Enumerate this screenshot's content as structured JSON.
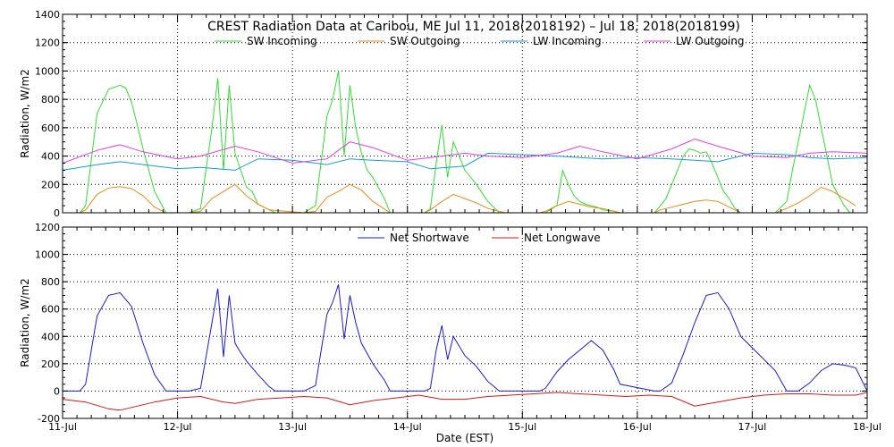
{
  "chart_data": [
    {
      "type": "line",
      "title": "CREST Radiation Data at Caribou, ME   Jul 11, 2018(2018192) – Jul 18, 2018(2018199)",
      "ylabel": "Radiation, W/m2",
      "xlabel": "",
      "xlim": [
        0,
        7
      ],
      "ylim": [
        0,
        1400
      ],
      "yticks": [
        "0",
        "200",
        "400",
        "600",
        "800",
        "1000",
        "1200",
        "1400"
      ],
      "grid": true,
      "legend_position": "top",
      "colors": {
        "sw_in": "#33dd33",
        "sw_out": "#e88a1a",
        "lw_in": "#1a9ad6",
        "lw_out": "#e040e0"
      },
      "series": [
        {
          "name": "SW Incoming",
          "color": "#33dd33",
          "x": [
            0.15,
            0.2,
            0.3,
            0.4,
            0.5,
            0.55,
            0.6,
            0.65,
            0.7,
            0.8,
            0.9,
            0.95,
            1.1,
            1.2,
            1.3,
            1.35,
            1.4,
            1.45,
            1.5,
            1.55,
            1.6,
            1.65,
            1.7,
            1.8,
            1.85,
            2.1,
            2.2,
            2.3,
            2.35,
            2.4,
            2.45,
            2.5,
            2.55,
            2.6,
            2.65,
            2.7,
            2.8,
            2.85,
            3.15,
            3.2,
            3.25,
            3.3,
            3.35,
            3.4,
            3.5,
            3.6,
            3.7,
            3.8,
            4.2,
            4.3,
            4.35,
            4.4,
            4.45,
            4.5,
            4.55,
            4.6,
            4.65,
            4.7,
            4.8,
            4.85,
            5.15,
            5.2,
            5.25,
            5.3,
            5.35,
            5.4,
            5.45,
            5.5,
            5.55,
            5.6,
            5.65,
            5.7,
            5.75,
            5.8,
            5.85,
            5.9,
            6.2,
            6.3,
            6.35,
            6.4,
            6.45,
            6.5,
            6.55,
            6.6,
            6.65,
            6.7,
            6.8,
            6.85,
            6.9
          ],
          "values": [
            0,
            50,
            700,
            870,
            900,
            880,
            780,
            620,
            450,
            150,
            0,
            0,
            0,
            30,
            600,
            950,
            300,
            900,
            420,
            300,
            180,
            150,
            60,
            20,
            0,
            0,
            50,
            680,
            800,
            1000,
            400,
            900,
            600,
            420,
            300,
            250,
            100,
            0,
            0,
            30,
            350,
            620,
            250,
            500,
            300,
            200,
            80,
            0,
            0,
            50,
            300,
            200,
            120,
            80,
            60,
            50,
            40,
            20,
            10,
            0,
            0,
            50,
            100,
            200,
            300,
            400,
            450,
            440,
            420,
            430,
            350,
            250,
            150,
            100,
            30,
            0,
            0,
            80,
            300,
            500,
            700,
            900,
            800,
            600,
            400,
            200,
            50,
            0,
            0
          ]
        },
        {
          "name": "SW Outgoing",
          "color": "#e88a1a",
          "x": [
            0.15,
            0.2,
            0.3,
            0.4,
            0.5,
            0.6,
            0.7,
            0.8,
            0.9,
            1.1,
            1.2,
            1.3,
            1.4,
            1.5,
            1.6,
            1.7,
            1.8,
            2.1,
            2.2,
            2.3,
            2.4,
            2.5,
            2.6,
            2.7,
            2.85,
            3.15,
            3.2,
            3.3,
            3.4,
            3.5,
            3.6,
            3.7,
            3.85,
            4.15,
            4.2,
            4.3,
            4.4,
            4.5,
            4.6,
            4.7,
            4.8,
            4.85,
            5.15,
            5.2,
            5.3,
            5.4,
            5.5,
            5.6,
            5.7,
            5.8,
            5.85,
            5.9,
            6.2,
            6.3,
            6.4,
            6.5,
            6.6,
            6.7,
            6.8,
            6.9
          ],
          "values": [
            0,
            20,
            130,
            175,
            185,
            170,
            120,
            40,
            0,
            0,
            10,
            100,
            150,
            200,
            120,
            60,
            20,
            0,
            10,
            110,
            150,
            200,
            160,
            80,
            0,
            0,
            20,
            80,
            130,
            100,
            70,
            30,
            0,
            0,
            10,
            50,
            80,
            60,
            40,
            30,
            10,
            0,
            0,
            20,
            40,
            60,
            80,
            90,
            80,
            40,
            20,
            0,
            0,
            30,
            70,
            120,
            180,
            150,
            100,
            50
          ]
        },
        {
          "name": "LW Incoming",
          "color": "#1a9ad6",
          "x": [
            0,
            0.3,
            0.5,
            0.7,
            1.0,
            1.2,
            1.5,
            1.7,
            2.0,
            2.3,
            2.5,
            2.7,
            3.0,
            3.2,
            3.5,
            3.7,
            4.0,
            4.3,
            4.5,
            4.7,
            5.0,
            5.3,
            5.5,
            5.7,
            6.0,
            6.3,
            6.5,
            6.7,
            7.0
          ],
          "values": [
            300,
            340,
            360,
            340,
            310,
            320,
            300,
            380,
            370,
            340,
            380,
            370,
            360,
            310,
            330,
            420,
            410,
            400,
            390,
            380,
            390,
            380,
            370,
            360,
            420,
            410,
            390,
            380,
            390
          ]
        },
        {
          "name": "LW Outgoing",
          "color": "#e040e0",
          "x": [
            0,
            0.3,
            0.5,
            0.7,
            1.0,
            1.2,
            1.5,
            1.7,
            2.0,
            2.3,
            2.5,
            2.7,
            3.0,
            3.2,
            3.5,
            3.7,
            4.0,
            4.3,
            4.5,
            4.7,
            5.0,
            5.3,
            5.5,
            5.7,
            6.0,
            6.3,
            6.5,
            6.7,
            7.0
          ],
          "values": [
            350,
            440,
            480,
            430,
            380,
            400,
            470,
            430,
            350,
            380,
            500,
            460,
            370,
            390,
            420,
            400,
            390,
            420,
            470,
            430,
            380,
            450,
            520,
            470,
            400,
            390,
            420,
            430,
            420
          ]
        }
      ]
    },
    {
      "type": "line",
      "title": "",
      "ylabel": "Radiation, W/m2",
      "xlabel": "Date (EST)",
      "xlim": [
        0,
        7
      ],
      "ylim": [
        -200,
        1200
      ],
      "yticks": [
        "-200",
        "0",
        "200",
        "400",
        "600",
        "800",
        "1000",
        "1200"
      ],
      "xticks": [
        "11-Jul",
        "12-Jul",
        "13-Jul",
        "14-Jul",
        "15-Jul",
        "16-Jul",
        "17-Jul",
        "18-Jul"
      ],
      "grid": true,
      "legend_position": "top",
      "colors": {
        "net_sw": "#1a1ad0",
        "net_lw": "#d01a1a"
      },
      "series": [
        {
          "name": "Net Shortwave",
          "color": "#1a1ad0",
          "x": [
            0,
            0.15,
            0.2,
            0.3,
            0.4,
            0.5,
            0.6,
            0.7,
            0.8,
            0.9,
            1.1,
            1.2,
            1.3,
            1.35,
            1.4,
            1.45,
            1.5,
            1.55,
            1.6,
            1.7,
            1.8,
            1.85,
            2.1,
            2.2,
            2.3,
            2.35,
            2.4,
            2.45,
            2.5,
            2.55,
            2.6,
            2.7,
            2.8,
            2.85,
            3.15,
            3.2,
            3.25,
            3.3,
            3.35,
            3.4,
            3.5,
            3.6,
            3.7,
            3.8,
            4.15,
            4.2,
            4.3,
            4.4,
            4.5,
            4.6,
            4.7,
            4.8,
            4.85,
            5.15,
            5.2,
            5.3,
            5.4,
            5.5,
            5.6,
            5.7,
            5.8,
            5.9,
            6.2,
            6.3,
            6.4,
            6.5,
            6.6,
            6.7,
            6.8,
            6.9,
            7.0
          ],
          "values": [
            0,
            0,
            50,
            550,
            700,
            720,
            620,
            350,
            120,
            0,
            0,
            20,
            500,
            750,
            250,
            700,
            350,
            280,
            220,
            120,
            30,
            0,
            0,
            40,
            560,
            650,
            780,
            380,
            700,
            500,
            350,
            200,
            80,
            0,
            0,
            20,
            300,
            480,
            230,
            400,
            260,
            180,
            70,
            0,
            0,
            20,
            140,
            230,
            300,
            370,
            300,
            150,
            50,
            0,
            0,
            60,
            270,
            500,
            700,
            720,
            600,
            400,
            150,
            0,
            0,
            60,
            150,
            200,
            190,
            170,
            0
          ]
        },
        {
          "name": "Net Longwave",
          "color": "#d01a1a",
          "x": [
            0,
            0.2,
            0.4,
            0.5,
            0.6,
            0.8,
            1.0,
            1.2,
            1.4,
            1.5,
            1.7,
            1.9,
            2.1,
            2.3,
            2.5,
            2.7,
            2.9,
            3.1,
            3.3,
            3.5,
            3.7,
            3.9,
            4.1,
            4.3,
            4.5,
            4.7,
            4.9,
            5.1,
            5.3,
            5.5,
            5.7,
            5.9,
            6.1,
            6.3,
            6.5,
            6.7,
            6.9,
            7.0
          ],
          "values": [
            -60,
            -80,
            -130,
            -140,
            -120,
            -80,
            -50,
            -40,
            -80,
            -90,
            -60,
            -50,
            -40,
            -50,
            -100,
            -70,
            -50,
            -30,
            -60,
            -60,
            -40,
            -30,
            -20,
            -10,
            -20,
            -30,
            -40,
            -30,
            -40,
            -110,
            -80,
            -50,
            -30,
            -20,
            -20,
            -30,
            -30,
            -10
          ]
        }
      ]
    }
  ]
}
